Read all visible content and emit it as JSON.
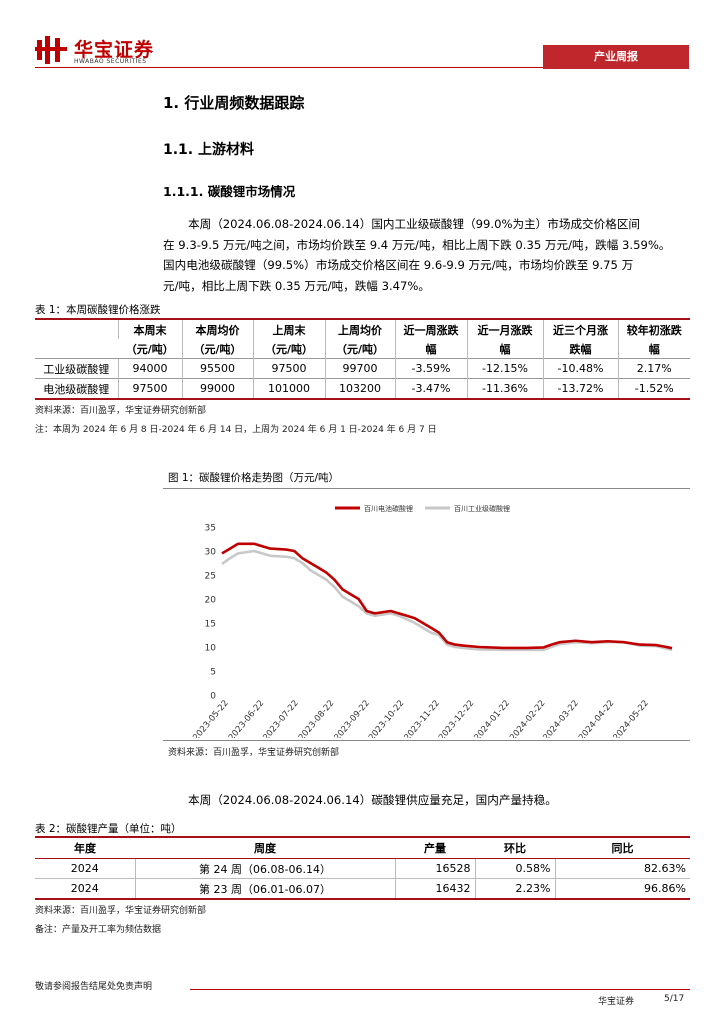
{
  "header": {
    "logo": "华宝证券",
    "logo_en": "HWABAO SECURITIES",
    "tag": "产业周报"
  },
  "headings": [
    "1. 行业周频数据跟踪",
    "1.1. 上游材料",
    "1.1.1. 碳酸锂市场情况"
  ],
  "paragraph1": [
    "本周（2024.06.08-2024.06.14）国内工业级碳酸锂（99.0%为主）市场成交价格区间",
    "在 9.3-9.5 万元/吨之间，市场均价跌至 9.4 万元/吨，相比上周下跌 0.35 万元/吨，跌幅 3.59%。",
    "国内电池级碳酸锂（99.5%）市场成交价格区间在 9.6-9.9 万元/吨，市场均价跌至 9.75 万",
    "元/吨，相比上周下跌 0.35 万元/吨，跌幅 3.47%。"
  ],
  "table1": {
    "caption": "表 1：本周碳酸锂价格涨跌",
    "columns": [
      [
        "本周末",
        "（元/吨）"
      ],
      [
        "本周均价",
        "（元/吨）"
      ],
      [
        "上周末",
        "（元/吨）"
      ],
      [
        "上周均价",
        "（元/吨）"
      ],
      [
        "近一周涨跌",
        "幅"
      ],
      [
        "近一月涨跌",
        "幅"
      ],
      [
        "近三个月涨",
        "跌幅"
      ],
      [
        "较年初涨跌",
        "幅"
      ]
    ],
    "rows": [
      {
        "label": "工业级碳酸锂",
        "cells": [
          "94000",
          "95500",
          "97500",
          "99700",
          "-3.59%",
          "-12.15%",
          "-10.48%",
          "2.17%"
        ]
      },
      {
        "label": "电池级碳酸锂",
        "cells": [
          "97500",
          "99000",
          "101000",
          "103200",
          "-3.47%",
          "-11.36%",
          "-13.72%",
          "-1.52%"
        ]
      }
    ],
    "source": "资料来源：百川盈孚，华宝证券研究创新部",
    "note": "注：本周为 2024 年 6 月 8 日-2024 年 6 月 14 日，上周为 2024 年 6 月 1 日-2024 年 6 月 7 日"
  },
  "figure1": {
    "caption": "图 1：碳酸锂价格走势图（万元/吨）",
    "source": "资料来源：百川盈孚，华宝证券研究创新部"
  },
  "chart_data": {
    "type": "line",
    "legend": "top",
    "x": [
      "2023-05-19",
      "2023-05-26",
      "2023-06-02",
      "2023-06-16",
      "2023-06-30",
      "2023-07-14",
      "2023-07-21",
      "2023-07-28",
      "2023-08-04",
      "2023-08-11",
      "2023-08-18",
      "2023-08-25",
      "2023-09-01",
      "2023-09-08",
      "2023-09-15",
      "2023-09-22",
      "2023-09-29",
      "2023-10-13",
      "2023-10-20",
      "2023-10-27",
      "2023-11-03",
      "2023-11-10",
      "2023-11-17",
      "2023-11-24",
      "2023-12-01",
      "2023-12-08",
      "2023-12-15",
      "2023-12-29",
      "2024-01-19",
      "2024-02-09",
      "2024-02-23",
      "2024-03-01",
      "2024-03-08",
      "2024-03-22",
      "2024-04-05",
      "2024-04-19",
      "2024-05-03",
      "2024-05-17",
      "2024-05-31",
      "2024-06-07",
      "2024-06-14"
    ],
    "series": [
      {
        "name": "百川电池碳酸锂",
        "color": "#c00000",
        "values": [
          29.5,
          30.5,
          31.5,
          31.5,
          30.5,
          30.3,
          30,
          28.5,
          27.5,
          26.5,
          25.5,
          24,
          22,
          21,
          20,
          17.5,
          17,
          17.5,
          17,
          16.5,
          16,
          15,
          14,
          13,
          11,
          10.5,
          10.3,
          10,
          9.8,
          9.8,
          9.9,
          10.5,
          11,
          11.3,
          11,
          11.2,
          11,
          10.5,
          10.4,
          10.1,
          9.75
        ]
      },
      {
        "name": "百川工业级碳酸锂",
        "color": "#c8c8c8",
        "values": [
          27.3,
          28.5,
          29.5,
          30,
          29,
          28.8,
          28.5,
          27.5,
          26,
          25,
          24,
          22.5,
          20.5,
          19.5,
          18.5,
          17,
          16.5,
          17,
          16.5,
          15.8,
          15,
          14,
          13,
          12.5,
          10.5,
          10,
          9.8,
          9.5,
          9.4,
          9.4,
          9.4,
          10,
          10.6,
          11,
          10.8,
          11,
          11,
          10.3,
          10.2,
          9.8,
          9.4
        ]
      }
    ],
    "xlim": [
      "2023-05-19",
      "2024-06-14"
    ],
    "xticks": [
      "2023-05-22",
      "2023-06-22",
      "2023-07-22",
      "2023-08-22",
      "2023-09-22",
      "2023-10-22",
      "2023-11-22",
      "2023-12-22",
      "2024-01-22",
      "2024-02-22",
      "2024-03-22",
      "2024-04-22",
      "2024-05-22"
    ],
    "ylim": [
      0,
      35
    ],
    "yticks": [
      0,
      5,
      10,
      15,
      20,
      25,
      30,
      35
    ],
    "grid": false
  },
  "paragraph2": "本周（2024.06.08-2024.06.14）碳酸锂供应量充足，国内产量持稳。",
  "table2": {
    "caption": "表 2：碳酸锂产量（单位：吨）",
    "columns": [
      "年度",
      "周度",
      "产量",
      "环比",
      "同比"
    ],
    "rows": [
      [
        "2024",
        "第 24 周（06.08-06.14）",
        "16528",
        "0.58%",
        "82.63%"
      ],
      [
        "2024",
        "第 23 周（06.01-06.07）",
        "16432",
        "2.23%",
        "96.86%"
      ]
    ],
    "source": "资料来源：百川盈孚，华宝证券研究创新部",
    "note": "备注：产量及开工率为频估数据"
  },
  "footer": {
    "disclaimer": "敬请参阅报告结尾处免责声明",
    "company": "华宝证券",
    "page": "5/17"
  }
}
